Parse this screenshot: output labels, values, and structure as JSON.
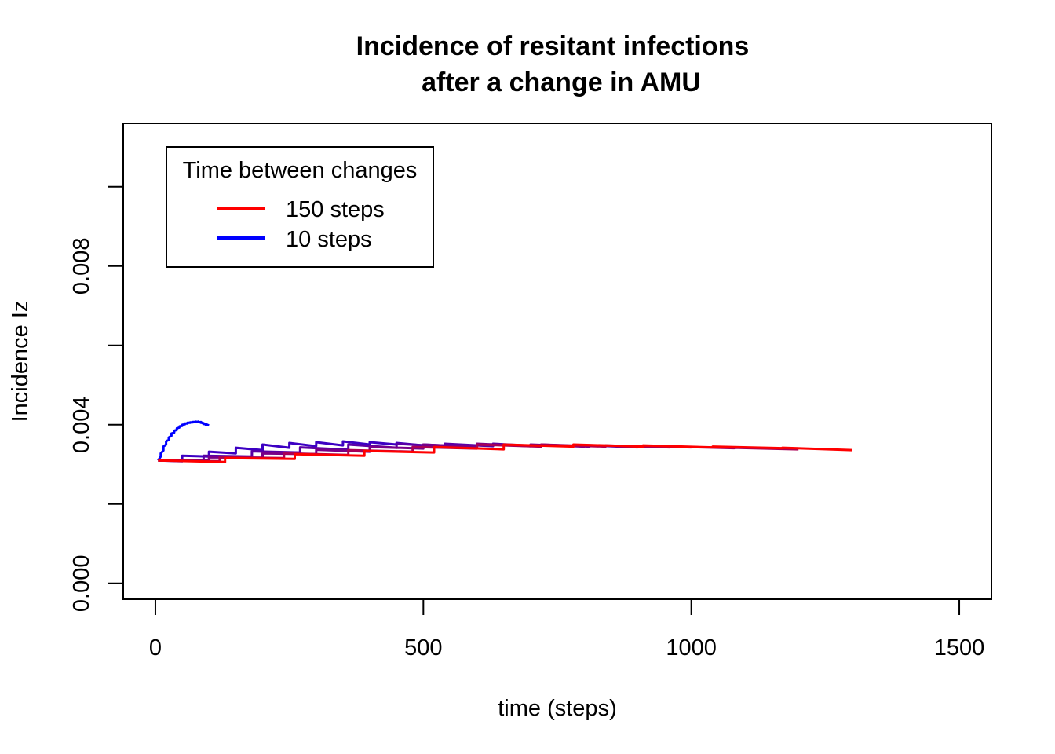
{
  "chart_data": {
    "type": "line",
    "title_lines": [
      "Incidence of resitant infections",
      "after a change in AMU"
    ],
    "xlabel": "time (steps)",
    "ylabel": "Incidence Iz",
    "xlim": [
      -60,
      1560
    ],
    "ylim": [
      -0.0004,
      0.0116
    ],
    "x_ticks": [
      0,
      500,
      1000,
      1500
    ],
    "x_tick_labels": [
      "0",
      "500",
      "1000",
      "1500"
    ],
    "y_ticks": [
      0.0,
      0.002,
      0.004,
      0.006,
      0.008,
      0.01
    ],
    "y_tick_labels": [
      "0.000",
      "",
      "0.004",
      "",
      "0.008",
      ""
    ],
    "grid": false,
    "legend": {
      "position": "top-left",
      "title": "Time between changes",
      "entries": [
        {
          "label": "150 steps",
          "color": "#ff0000"
        },
        {
          "label": "10 steps",
          "color": "#0000ff"
        }
      ]
    },
    "series": [
      {
        "color": "#0000ff",
        "x": [
          5,
          10,
          10,
          15,
          15,
          20,
          20,
          25,
          25,
          30,
          30,
          35,
          35,
          40,
          40,
          45,
          45,
          50,
          50,
          55,
          55,
          60,
          60,
          65,
          65,
          70,
          70,
          75,
          75,
          80,
          80,
          85,
          85,
          90,
          90,
          95,
          95,
          100
        ],
        "y": [
          0.0031,
          0.0032,
          0.00328,
          0.00335,
          0.00345,
          0.0035,
          0.00358,
          0.00362,
          0.00368,
          0.00372,
          0.00378,
          0.0038,
          0.00385,
          0.00387,
          0.00391,
          0.00393,
          0.00396,
          0.00397,
          0.004,
          0.00401,
          0.00403,
          0.00403,
          0.00405,
          0.00405,
          0.00406,
          0.00406,
          0.00407,
          0.00407,
          0.00408,
          0.00407,
          0.00408,
          0.00405,
          0.00407,
          0.00402,
          0.00404,
          0.00399,
          0.00401,
          0.00398
        ]
      },
      {
        "color": "#3c00c3",
        "x": [
          5,
          50,
          50,
          100,
          100,
          150,
          150,
          200,
          200,
          250,
          250,
          300,
          300,
          350,
          350,
          400,
          400,
          450,
          450,
          500,
          500,
          550
        ],
        "y": [
          0.0031,
          0.00308,
          0.00322,
          0.0032,
          0.00332,
          0.00328,
          0.00342,
          0.00336,
          0.0035,
          0.00342,
          0.00354,
          0.00346,
          0.00356,
          0.00348,
          0.00358,
          0.0035,
          0.00356,
          0.0035,
          0.00354,
          0.00348,
          0.0035,
          0.00347
        ]
      },
      {
        "color": "#5a00a5",
        "x": [
          5,
          90,
          90,
          180,
          180,
          270,
          270,
          360,
          360,
          450,
          450,
          540,
          540,
          630,
          630,
          720,
          720,
          810,
          810,
          900
        ],
        "y": [
          0.0031,
          0.0031,
          0.00322,
          0.0032,
          0.00333,
          0.0033,
          0.00343,
          0.00337,
          0.0035,
          0.00342,
          0.00352,
          0.00345,
          0.00352,
          0.00346,
          0.00352,
          0.00346,
          0.0035,
          0.00345,
          0.00348,
          0.00343
        ]
      },
      {
        "color": "#780087",
        "x": [
          5,
          100,
          100,
          200,
          200,
          300,
          300,
          400,
          400,
          500,
          500,
          600,
          600,
          700,
          700,
          800,
          800,
          900,
          900,
          1000
        ],
        "y": [
          0.0031,
          0.0031,
          0.00318,
          0.00317,
          0.00328,
          0.00326,
          0.00337,
          0.00332,
          0.00344,
          0.0034,
          0.0035,
          0.00344,
          0.00352,
          0.00346,
          0.0035,
          0.00345,
          0.00349,
          0.00344,
          0.00346,
          0.00343
        ]
      },
      {
        "color": "#aa0055",
        "x": [
          5,
          120,
          120,
          240,
          240,
          360,
          360,
          480,
          480,
          600,
          600,
          720,
          720,
          840,
          840,
          960,
          960,
          1080,
          1080,
          1200
        ],
        "y": [
          0.0031,
          0.00308,
          0.00318,
          0.00316,
          0.00328,
          0.00324,
          0.00336,
          0.00332,
          0.00344,
          0.0034,
          0.0035,
          0.00345,
          0.0035,
          0.00345,
          0.00348,
          0.00343,
          0.00345,
          0.00341,
          0.00342,
          0.00338
        ]
      },
      {
        "color": "#ff0000",
        "x": [
          5,
          130,
          130,
          260,
          260,
          390,
          390,
          520,
          520,
          650,
          650,
          780,
          780,
          910,
          910,
          1040,
          1040,
          1170,
          1170,
          1300
        ],
        "y": [
          0.0031,
          0.00306,
          0.00316,
          0.00314,
          0.00326,
          0.00322,
          0.00334,
          0.0033,
          0.00344,
          0.00338,
          0.0035,
          0.00345,
          0.0035,
          0.00345,
          0.00348,
          0.00343,
          0.00345,
          0.00341,
          0.00342,
          0.00336
        ]
      }
    ]
  }
}
